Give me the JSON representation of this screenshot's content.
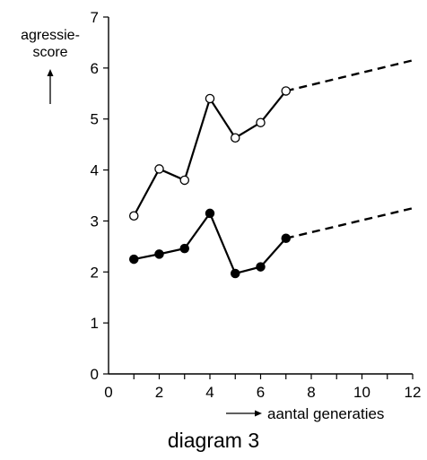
{
  "chart_data": {
    "type": "line",
    "title": "diagram 3",
    "ylabel_line1": "agressie-",
    "ylabel_line2": "score",
    "xlabel": "aantal generaties",
    "xlim": [
      0,
      12
    ],
    "ylim": [
      0,
      7
    ],
    "x_ticks": [
      "0",
      "2",
      "4",
      "6",
      "8",
      "10",
      "12"
    ],
    "y_ticks": [
      "0",
      "1",
      "2",
      "3",
      "4",
      "5",
      "6",
      "7"
    ],
    "grid": false,
    "series": [
      {
        "marker": "open-circle",
        "x": [
          1,
          2,
          3,
          4,
          5,
          6,
          7
        ],
        "y": [
          3.1,
          4.02,
          3.8,
          5.4,
          4.63,
          4.93,
          5.55
        ],
        "extrapolation": {
          "x": [
            7,
            12
          ],
          "y": [
            5.55,
            6.15
          ],
          "style": "dashed"
        }
      },
      {
        "marker": "filled-circle",
        "x": [
          1,
          2,
          3,
          4,
          5,
          6,
          7
        ],
        "y": [
          2.25,
          2.35,
          2.46,
          3.15,
          1.97,
          2.1,
          2.66
        ],
        "extrapolation": {
          "x": [
            7,
            12
          ],
          "y": [
            2.66,
            3.25
          ],
          "style": "dashed"
        }
      }
    ]
  }
}
